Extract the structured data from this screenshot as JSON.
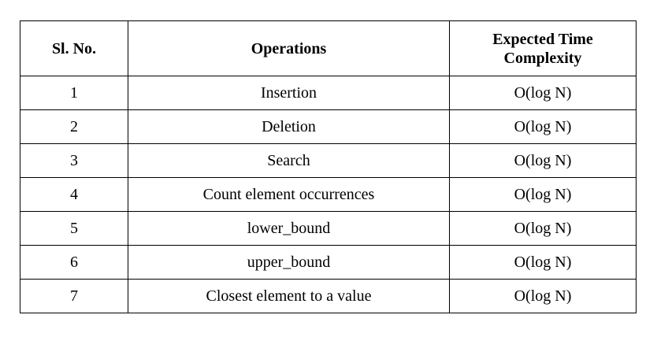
{
  "table": {
    "headers": {
      "sl_no": "Sl. No.",
      "operations": "Operations",
      "complexity_line1": "Expected Time",
      "complexity_line2": "Complexity"
    },
    "rows": [
      {
        "sl_no": "1",
        "operation": "Insertion",
        "complexity": "O(log N)"
      },
      {
        "sl_no": "2",
        "operation": "Deletion",
        "complexity": "O(log N)"
      },
      {
        "sl_no": "3",
        "operation": "Search",
        "complexity": "O(log N)"
      },
      {
        "sl_no": "4",
        "operation": "Count element occurrences",
        "complexity": "O(log N)"
      },
      {
        "sl_no": "5",
        "operation": "lower_bound",
        "complexity": "O(log N)"
      },
      {
        "sl_no": "6",
        "operation": "upper_bound",
        "complexity": "O(log N)"
      },
      {
        "sl_no": "7",
        "operation": "Closest element to a value",
        "complexity": "O(log N)"
      }
    ]
  }
}
